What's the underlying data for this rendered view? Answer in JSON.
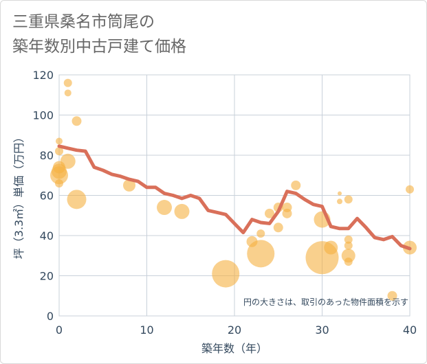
{
  "title": "三重県桑名市筒尾の\n築年数別中古戸建て価格",
  "chart_data": {
    "type": "scatter",
    "title": "三重県桑名市筒尾の\n築年数別中古戸建て価格",
    "xlabel": "築年数（年）",
    "ylabel": "坪（3.3㎡）単価（万円）",
    "xlim": [
      0,
      40
    ],
    "ylim": [
      0,
      120
    ],
    "x_ticks": [
      "0",
      "10",
      "20",
      "30",
      "40"
    ],
    "y_ticks": [
      "0",
      "20",
      "40",
      "60",
      "80",
      "100",
      "120"
    ],
    "grid": true,
    "note": "円の大きさは、取引のあった物件面積を示す",
    "colors": {
      "bubble": "#f5b041",
      "line": "#d9705a"
    },
    "bubbles": [
      {
        "x": 0,
        "y": 87,
        "s": 5
      },
      {
        "x": 0,
        "y": 82,
        "s": 6
      },
      {
        "x": 0,
        "y": 74,
        "s": 9
      },
      {
        "x": 0,
        "y": 72,
        "s": 11
      },
      {
        "x": 0,
        "y": 70,
        "s": 13
      },
      {
        "x": 0,
        "y": 66,
        "s": 6
      },
      {
        "x": 1,
        "y": 116,
        "s": 6
      },
      {
        "x": 1,
        "y": 111,
        "s": 5
      },
      {
        "x": 1,
        "y": 77,
        "s": 11
      },
      {
        "x": 2,
        "y": 97,
        "s": 7
      },
      {
        "x": 2,
        "y": 58,
        "s": 14
      },
      {
        "x": 8,
        "y": 65,
        "s": 9
      },
      {
        "x": 12,
        "y": 54,
        "s": 11
      },
      {
        "x": 14,
        "y": 52,
        "s": 11
      },
      {
        "x": 19,
        "y": 21,
        "s": 20
      },
      {
        "x": 22,
        "y": 37,
        "s": 8
      },
      {
        "x": 23,
        "y": 41,
        "s": 6
      },
      {
        "x": 23,
        "y": 31,
        "s": 20
      },
      {
        "x": 24,
        "y": 51,
        "s": 7
      },
      {
        "x": 25,
        "y": 54,
        "s": 7
      },
      {
        "x": 25,
        "y": 44,
        "s": 7
      },
      {
        "x": 26,
        "y": 54,
        "s": 7
      },
      {
        "x": 26,
        "y": 51,
        "s": 7
      },
      {
        "x": 27,
        "y": 65,
        "s": 7
      },
      {
        "x": 30,
        "y": 48,
        "s": 12
      },
      {
        "x": 30,
        "y": 29,
        "s": 24
      },
      {
        "x": 31,
        "y": 34,
        "s": 10
      },
      {
        "x": 32,
        "y": 61,
        "s": 3
      },
      {
        "x": 32,
        "y": 57,
        "s": 4
      },
      {
        "x": 33,
        "y": 58,
        "s": 6
      },
      {
        "x": 33,
        "y": 38,
        "s": 6
      },
      {
        "x": 33,
        "y": 35,
        "s": 6
      },
      {
        "x": 33,
        "y": 30,
        "s": 10
      },
      {
        "x": 33,
        "y": 27,
        "s": 6
      },
      {
        "x": 38,
        "y": 10,
        "s": 7
      },
      {
        "x": 40,
        "y": 63,
        "s": 6
      },
      {
        "x": 40,
        "y": 34,
        "s": 10
      }
    ],
    "series": [
      {
        "x": [
          0,
          1,
          2,
          3,
          4,
          5,
          6,
          7,
          8,
          9,
          10,
          11,
          12,
          13,
          14,
          15,
          16,
          17,
          18,
          19,
          20,
          21,
          22,
          23,
          24,
          25,
          26,
          27,
          28,
          29,
          30,
          31,
          32,
          33,
          34,
          35,
          36,
          37,
          38,
          39,
          40
        ],
        "y": [
          84.5,
          83.5,
          82.5,
          82,
          74,
          72.5,
          70.5,
          69.5,
          68,
          67,
          64,
          64,
          61,
          60,
          58.5,
          60,
          58.5,
          52.5,
          51.5,
          50.5,
          46,
          41.5,
          48,
          46.5,
          46,
          52,
          62,
          61,
          58,
          55.5,
          54.5,
          44.5,
          43.5,
          43.5,
          48.5,
          44,
          39,
          38,
          39.5,
          35,
          33.5
        ]
      }
    ]
  }
}
